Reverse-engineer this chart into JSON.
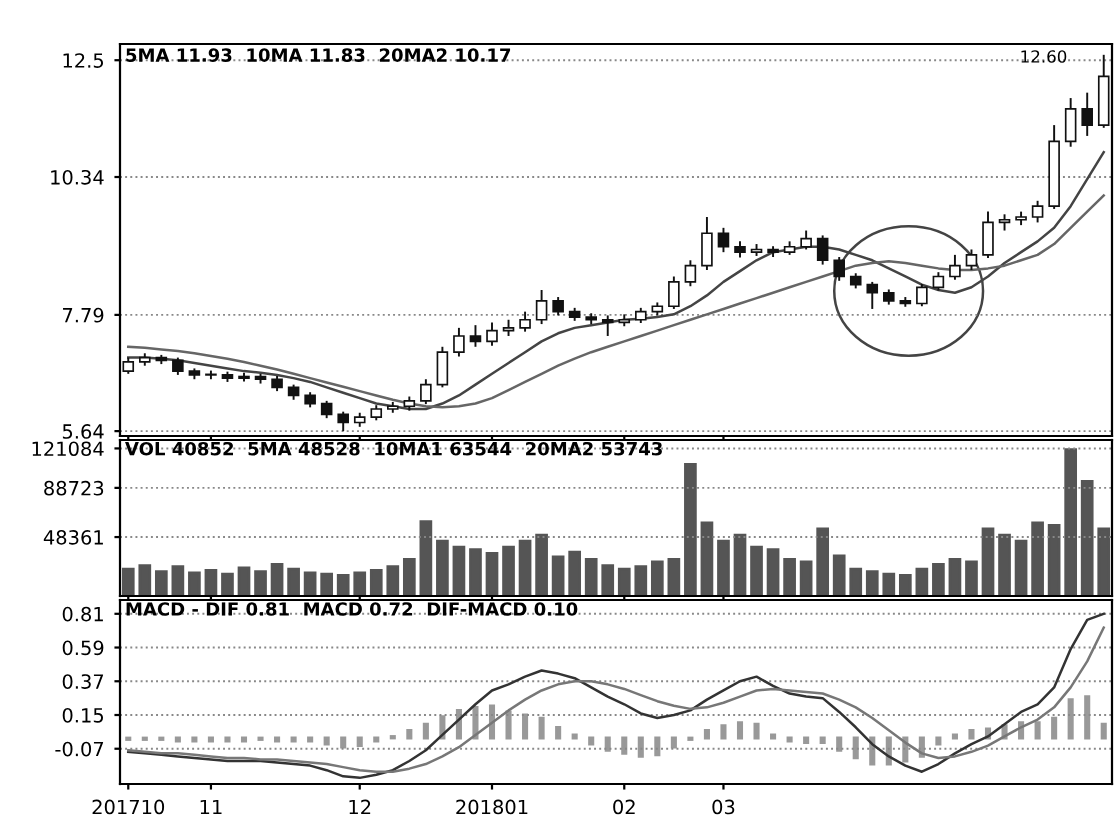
{
  "chart_data": [
    {
      "type": "candlestick",
      "title": "5MA 11.93  10MA 11.83  20MA2 10.17",
      "categories": [
        "201710",
        null,
        null,
        null,
        null,
        "11",
        null,
        null,
        null,
        null,
        null,
        null,
        null,
        null,
        "12",
        null,
        null,
        null,
        null,
        null,
        null,
        null,
        "201801",
        null,
        null,
        null,
        null,
        null,
        null,
        null,
        "02",
        null,
        null,
        null,
        null,
        null,
        "03",
        null,
        null,
        null,
        null,
        null,
        null,
        null,
        null,
        null,
        null,
        null,
        null,
        null,
        null,
        null,
        null,
        null,
        null,
        null,
        null,
        null,
        null,
        null
      ],
      "ohlc": [
        [
          6.75,
          7.0,
          6.7,
          6.92
        ],
        [
          6.92,
          7.08,
          6.85,
          7.0
        ],
        [
          7.0,
          7.05,
          6.88,
          6.95
        ],
        [
          6.95,
          7.0,
          6.68,
          6.75
        ],
        [
          6.75,
          6.8,
          6.6,
          6.68
        ],
        [
          6.68,
          6.76,
          6.6,
          6.68
        ],
        [
          6.68,
          6.74,
          6.55,
          6.62
        ],
        [
          6.62,
          6.72,
          6.56,
          6.65
        ],
        [
          6.65,
          6.7,
          6.52,
          6.6
        ],
        [
          6.6,
          6.66,
          6.38,
          6.45
        ],
        [
          6.45,
          6.5,
          6.22,
          6.3
        ],
        [
          6.3,
          6.36,
          6.08,
          6.15
        ],
        [
          6.15,
          6.2,
          5.88,
          5.95
        ],
        [
          5.95,
          6.0,
          5.64,
          5.8
        ],
        [
          5.8,
          5.98,
          5.72,
          5.9
        ],
        [
          5.9,
          6.12,
          5.84,
          6.05
        ],
        [
          6.05,
          6.18,
          5.98,
          6.1
        ],
        [
          6.1,
          6.28,
          6.02,
          6.2
        ],
        [
          6.2,
          6.6,
          6.14,
          6.5
        ],
        [
          6.5,
          7.2,
          6.45,
          7.1
        ],
        [
          7.1,
          7.55,
          7.02,
          7.4
        ],
        [
          7.4,
          7.6,
          7.2,
          7.3
        ],
        [
          7.3,
          7.65,
          7.22,
          7.5
        ],
        [
          7.5,
          7.7,
          7.4,
          7.55
        ],
        [
          7.55,
          7.85,
          7.48,
          7.7
        ],
        [
          7.7,
          8.25,
          7.62,
          8.05
        ],
        [
          8.05,
          8.12,
          7.78,
          7.85
        ],
        [
          7.85,
          7.92,
          7.68,
          7.75
        ],
        [
          7.75,
          7.82,
          7.62,
          7.7
        ],
        [
          7.7,
          7.78,
          7.4,
          7.65
        ],
        [
          7.65,
          7.8,
          7.58,
          7.7
        ],
        [
          7.7,
          7.92,
          7.64,
          7.85
        ],
        [
          7.85,
          8.02,
          7.78,
          7.95
        ],
        [
          7.95,
          8.5,
          7.9,
          8.4
        ],
        [
          8.4,
          8.8,
          8.32,
          8.7
        ],
        [
          8.7,
          9.6,
          8.62,
          9.3
        ],
        [
          9.3,
          9.4,
          8.95,
          9.05
        ],
        [
          9.05,
          9.15,
          8.85,
          8.95
        ],
        [
          8.95,
          9.1,
          8.88,
          9.0
        ],
        [
          9.0,
          9.06,
          8.86,
          8.95
        ],
        [
          8.95,
          9.15,
          8.9,
          9.05
        ],
        [
          9.05,
          9.35,
          9.0,
          9.2
        ],
        [
          9.2,
          9.26,
          8.72,
          8.8
        ],
        [
          8.8,
          8.86,
          8.42,
          8.5
        ],
        [
          8.5,
          8.56,
          8.28,
          8.35
        ],
        [
          8.35,
          8.4,
          7.9,
          8.2
        ],
        [
          8.2,
          8.26,
          7.98,
          8.05
        ],
        [
          8.05,
          8.12,
          7.94,
          8.0
        ],
        [
          8.0,
          8.36,
          7.95,
          8.3
        ],
        [
          8.3,
          8.58,
          8.24,
          8.5
        ],
        [
          8.5,
          8.9,
          8.44,
          8.7
        ],
        [
          8.7,
          9.0,
          8.62,
          8.9
        ],
        [
          8.9,
          9.7,
          8.84,
          9.5
        ],
        [
          9.5,
          9.65,
          9.35,
          9.55
        ],
        [
          9.55,
          9.7,
          9.45,
          9.6
        ],
        [
          9.6,
          9.9,
          9.5,
          9.8
        ],
        [
          9.8,
          11.3,
          9.75,
          11.0
        ],
        [
          11.0,
          11.8,
          10.9,
          11.6
        ],
        [
          11.6,
          11.9,
          11.1,
          11.3
        ],
        [
          11.3,
          12.6,
          11.25,
          12.2
        ]
      ],
      "series": [
        {
          "type": "line",
          "color": "#444444",
          "values": [
            7.0,
            7.0,
            6.98,
            6.95,
            6.9,
            6.85,
            6.8,
            6.75,
            6.72,
            6.68,
            6.62,
            6.55,
            6.45,
            6.35,
            6.25,
            6.15,
            6.1,
            6.05,
            6.05,
            6.15,
            6.3,
            6.5,
            6.7,
            6.9,
            7.1,
            7.3,
            7.45,
            7.55,
            7.6,
            7.65,
            7.7,
            7.72,
            7.75,
            7.8,
            7.95,
            8.15,
            8.4,
            8.6,
            8.8,
            8.95,
            9.0,
            9.05,
            9.05,
            9.0,
            8.9,
            8.8,
            8.65,
            8.5,
            8.35,
            8.25,
            8.2,
            8.3,
            8.5,
            8.75,
            8.95,
            9.15,
            9.4,
            9.8,
            10.3,
            10.8
          ]
        },
        {
          "type": "line",
          "color": "#666666",
          "values": [
            7.2,
            7.18,
            7.15,
            7.12,
            7.08,
            7.03,
            6.98,
            6.92,
            6.85,
            6.78,
            6.7,
            6.62,
            6.54,
            6.46,
            6.38,
            6.3,
            6.22,
            6.15,
            6.1,
            6.08,
            6.1,
            6.15,
            6.25,
            6.4,
            6.55,
            6.7,
            6.85,
            6.98,
            7.1,
            7.2,
            7.3,
            7.4,
            7.5,
            7.6,
            7.7,
            7.8,
            7.9,
            8.0,
            8.1,
            8.2,
            8.3,
            8.4,
            8.5,
            8.6,
            8.7,
            8.75,
            8.78,
            8.75,
            8.7,
            8.65,
            8.62,
            8.62,
            8.65,
            8.7,
            8.8,
            8.9,
            9.1,
            9.4,
            9.7,
            10.0
          ]
        }
      ],
      "annotations": [
        "12.60"
      ],
      "ylim": [
        5.55,
        12.8
      ],
      "yticks": [
        5.64,
        7.79,
        10.34,
        12.5
      ],
      "grid": "y",
      "tick_labels": "y",
      "legend": false
    },
    {
      "type": "bar",
      "title": "VOL 40852  5MA 48528  10MA1 63544  20MA2 53743",
      "categories": [
        "201710",
        null,
        null,
        null,
        null,
        "11",
        null,
        null,
        null,
        null,
        null,
        null,
        null,
        null,
        "12",
        null,
        null,
        null,
        null,
        null,
        null,
        null,
        "201801",
        null,
        null,
        null,
        null,
        null,
        null,
        null,
        "02",
        null,
        null,
        null,
        null,
        null,
        "03",
        null,
        null,
        null,
        null,
        null,
        null,
        null,
        null,
        null,
        null,
        null,
        null,
        null,
        null,
        null,
        null,
        null,
        null,
        null,
        null,
        null,
        null,
        null
      ],
      "series": [
        {
          "color": "#555555",
          "values": [
            22000,
            25000,
            20000,
            24000,
            19000,
            21000,
            18000,
            23000,
            20000,
            26000,
            22000,
            19000,
            18000,
            17000,
            19000,
            21000,
            24000,
            30000,
            61000,
            45000,
            40000,
            38000,
            35000,
            40000,
            45000,
            50000,
            32000,
            36000,
            30000,
            25000,
            22000,
            24000,
            28000,
            30000,
            108000,
            60000,
            45000,
            50000,
            40000,
            38000,
            30000,
            28000,
            55000,
            33000,
            22000,
            20000,
            18000,
            17000,
            22000,
            26000,
            30000,
            28000,
            55000,
            50000,
            45000,
            60000,
            58000,
            120000,
            94000,
            55000
          ]
        }
      ],
      "ylim": [
        0,
        128000
      ],
      "yticks": [
        48361,
        88723,
        121084
      ],
      "grid": "y",
      "tick_labels": "y",
      "legend": false
    },
    {
      "type": "line",
      "title": "MACD - DIF 0.81  MACD 0.72  DIF-MACD 0.10",
      "categories": [
        "201710",
        null,
        null,
        null,
        null,
        "11",
        null,
        null,
        null,
        null,
        null,
        null,
        null,
        null,
        "12",
        null,
        null,
        null,
        null,
        null,
        null,
        null,
        "201801",
        null,
        null,
        null,
        null,
        null,
        null,
        null,
        "02",
        null,
        null,
        null,
        null,
        null,
        "03",
        null,
        null,
        null,
        null,
        null,
        null,
        null,
        null,
        null,
        null,
        null,
        null,
        null,
        null,
        null,
        null,
        null,
        null,
        null,
        null,
        null,
        null,
        null
      ],
      "series": [
        {
          "type": "bar",
          "color": "#999999",
          "values": [
            -0.01,
            -0.01,
            -0.01,
            -0.02,
            -0.02,
            -0.02,
            -0.02,
            -0.02,
            -0.01,
            -0.02,
            -0.02,
            -0.02,
            -0.04,
            -0.06,
            -0.05,
            -0.02,
            0.01,
            0.05,
            0.09,
            0.14,
            0.18,
            0.2,
            0.21,
            0.17,
            0.15,
            0.13,
            0.07,
            0.02,
            -0.04,
            -0.08,
            -0.1,
            -0.12,
            -0.11,
            -0.06,
            -0.01,
            0.05,
            0.08,
            0.1,
            0.09,
            0.02,
            -0.02,
            -0.03,
            -0.03,
            -0.08,
            -0.13,
            -0.17,
            -0.17,
            -0.15,
            -0.12,
            -0.04,
            0.02,
            0.05,
            0.06,
            0.08,
            0.1,
            0.1,
            0.13,
            0.25,
            0.27,
            0.09
          ]
        },
        {
          "type": "line",
          "color": "#333333",
          "values": [
            -0.09,
            -0.1,
            -0.11,
            -0.12,
            -0.13,
            -0.14,
            -0.15,
            -0.15,
            -0.15,
            -0.16,
            -0.17,
            -0.18,
            -0.21,
            -0.25,
            -0.26,
            -0.24,
            -0.21,
            -0.15,
            -0.08,
            0.02,
            0.12,
            0.22,
            0.31,
            0.35,
            0.4,
            0.44,
            0.42,
            0.39,
            0.33,
            0.27,
            0.22,
            0.16,
            0.13,
            0.15,
            0.18,
            0.25,
            0.31,
            0.37,
            0.4,
            0.34,
            0.29,
            0.27,
            0.26,
            0.17,
            0.07,
            -0.04,
            -0.12,
            -0.18,
            -0.22,
            -0.17,
            -0.1,
            -0.04,
            0.01,
            0.09,
            0.17,
            0.22,
            0.33,
            0.58,
            0.77,
            0.81
          ]
        },
        {
          "type": "line",
          "color": "#777777",
          "values": [
            -0.08,
            -0.09,
            -0.1,
            -0.1,
            -0.11,
            -0.12,
            -0.13,
            -0.13,
            -0.14,
            -0.14,
            -0.15,
            -0.16,
            -0.17,
            -0.19,
            -0.21,
            -0.22,
            -0.22,
            -0.2,
            -0.17,
            -0.12,
            -0.06,
            0.02,
            0.1,
            0.18,
            0.25,
            0.31,
            0.35,
            0.37,
            0.37,
            0.35,
            0.32,
            0.28,
            0.24,
            0.21,
            0.19,
            0.2,
            0.23,
            0.27,
            0.31,
            0.32,
            0.31,
            0.3,
            0.29,
            0.25,
            0.2,
            0.13,
            0.05,
            -0.03,
            -0.1,
            -0.13,
            -0.12,
            -0.09,
            -0.05,
            0.01,
            0.07,
            0.12,
            0.2,
            0.33,
            0.5,
            0.72
          ]
        }
      ],
      "ylim": [
        -0.3,
        0.9
      ],
      "yticks": [
        -0.07,
        0.15,
        0.37,
        0.59,
        0.81
      ],
      "grid": "y",
      "legend": false
    }
  ]
}
